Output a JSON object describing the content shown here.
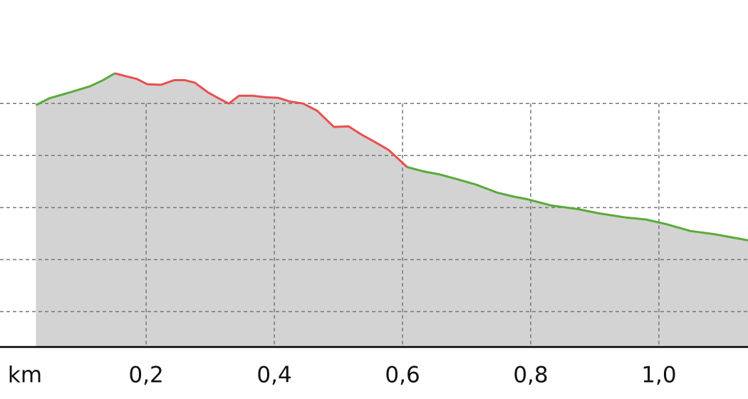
{
  "chart_data": {
    "type": "area-line",
    "x_label": "km",
    "x": [
      0.028,
      0.049,
      0.08,
      0.112,
      0.133,
      0.151,
      0.17,
      0.186,
      0.202,
      0.223,
      0.244,
      0.26,
      0.276,
      0.297,
      0.313,
      0.329,
      0.345,
      0.366,
      0.387,
      0.406,
      0.424,
      0.445,
      0.467,
      0.493,
      0.516,
      0.535,
      0.557,
      0.578,
      0.594,
      0.607,
      0.631,
      0.657,
      0.684,
      0.715,
      0.747,
      0.774,
      0.795,
      0.832,
      0.874,
      0.906,
      0.948,
      0.98,
      1.012,
      1.049,
      1.086,
      1.139
    ],
    "series": [
      {
        "color": "#5aaa3c",
        "values": [
          49.7,
          51.0,
          52.1,
          53.3,
          54.5,
          55.8,
          null,
          null,
          null,
          null,
          null,
          null,
          null,
          null,
          null,
          null,
          null,
          null,
          null,
          null,
          null,
          null,
          null,
          null,
          null,
          null,
          null,
          null,
          null,
          37.8,
          37.0,
          36.4,
          35.5,
          34.4,
          32.9,
          32.1,
          31.6,
          30.4,
          29.7,
          28.9,
          28.1,
          27.7,
          26.8,
          25.5,
          24.9,
          23.7
        ]
      },
      {
        "color": "#e8504f",
        "values": [
          null,
          null,
          null,
          null,
          null,
          55.8,
          55.2,
          54.7,
          53.7,
          53.6,
          54.5,
          54.5,
          54.0,
          52.1,
          51.0,
          50.0,
          51.5,
          51.5,
          51.2,
          51.1,
          50.4,
          50.0,
          48.6,
          45.5,
          45.6,
          44.1,
          42.6,
          41.1,
          39.3,
          37.8,
          null,
          null,
          null,
          null,
          null,
          null,
          null,
          null,
          null,
          null,
          null,
          null,
          null,
          null,
          null,
          null
        ]
      }
    ],
    "area_color": "#d3d3d3",
    "xlim": [
      -0.028,
      1.139
    ],
    "ylim": [
      3.2,
      69.9
    ],
    "xticks": [
      {
        "value": 0.2,
        "label": "0,2"
      },
      {
        "value": 0.4,
        "label": "0,4"
      },
      {
        "value": 0.6,
        "label": "0,6"
      },
      {
        "value": 0.8,
        "label": "0,8"
      },
      {
        "value": 1.0,
        "label": "1,0"
      }
    ],
    "yticks": [
      10,
      20,
      30,
      40,
      50
    ],
    "grid": true
  }
}
